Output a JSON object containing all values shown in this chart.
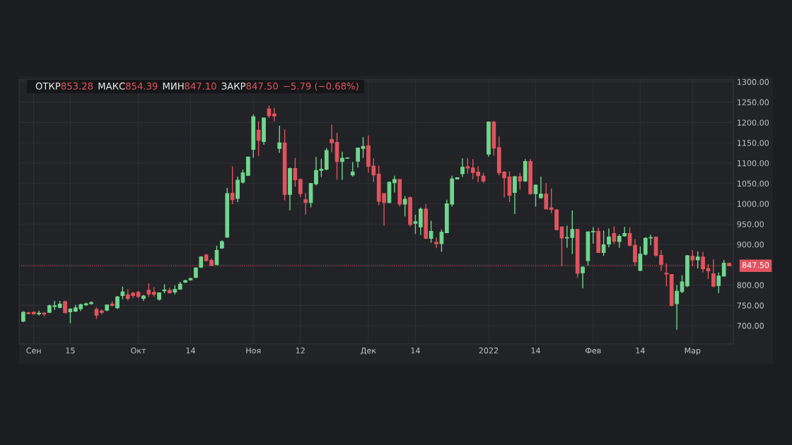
{
  "chart_data": {
    "type": "candlestick",
    "categories": [
      null,
      null,
      "Сен",
      null,
      null,
      null,
      null,
      null,
      null,
      "15",
      null,
      null,
      null,
      null,
      null,
      null,
      null,
      null,
      null,
      null,
      null,
      null,
      "Окт",
      null,
      null,
      null,
      null,
      null,
      null,
      null,
      null,
      null,
      "14",
      null,
      null,
      null,
      null,
      null,
      null,
      null,
      null,
      null,
      null,
      null,
      "Ноя",
      null,
      null,
      null,
      null,
      null,
      null,
      null,
      null,
      "12",
      null,
      null,
      null,
      null,
      null,
      null,
      null,
      null,
      null,
      null,
      null,
      null,
      "Дек",
      null,
      null,
      null,
      null,
      null,
      null,
      null,
      null,
      "14",
      null,
      null,
      null,
      null,
      null,
      null,
      null,
      null,
      null,
      null,
      null,
      null,
      null,
      "2022",
      null,
      null,
      null,
      null,
      null,
      null,
      null,
      null,
      "14",
      null,
      null,
      null,
      null,
      null,
      null,
      null,
      null,
      null,
      null,
      "Фев",
      null,
      null,
      null,
      null,
      null,
      null,
      null,
      null,
      "14",
      null,
      null,
      null,
      null,
      null,
      null,
      null,
      null,
      null,
      "Мар",
      null,
      null,
      null,
      null,
      null,
      null,
      null
    ],
    "ohlc": [
      [
        711,
        736,
        709,
        733
      ],
      [
        732,
        734,
        728,
        730
      ],
      [
        733,
        735,
        727,
        729
      ],
      [
        729,
        737,
        725,
        731
      ],
      [
        731,
        733,
        723,
        729
      ],
      [
        733,
        752,
        731,
        749
      ],
      [
        747,
        761,
        739,
        749
      ],
      [
        745,
        761,
        743,
        753
      ],
      [
        759,
        762,
        730,
        732
      ],
      [
        734,
        743,
        706,
        741
      ],
      [
        736,
        751,
        733,
        744
      ],
      [
        742,
        754,
        736,
        752
      ],
      [
        751,
        757,
        749,
        754
      ],
      [
        754,
        760,
        752,
        757
      ],
      [
        740,
        745,
        717,
        726
      ],
      [
        736,
        740,
        728,
        733
      ],
      [
        738,
        752,
        736,
        751
      ],
      [
        753,
        760,
        748,
        750
      ],
      [
        744,
        773,
        741,
        771
      ],
      [
        774,
        796,
        765,
        783
      ],
      [
        776,
        790,
        762,
        767
      ],
      [
        780,
        783,
        768,
        774
      ],
      [
        782,
        786,
        768,
        772
      ],
      [
        767,
        776,
        761,
        773
      ],
      [
        787,
        804,
        771,
        778
      ],
      [
        782,
        795,
        771,
        777
      ],
      [
        765,
        782,
        762,
        781
      ],
      [
        786,
        802,
        780,
        788
      ],
      [
        787,
        794,
        779,
        781
      ],
      [
        783,
        799,
        777,
        789
      ],
      [
        790,
        808,
        789,
        802
      ],
      [
        807,
        813,
        805,
        811
      ],
      [
        813,
        818,
        811,
        816
      ],
      [
        819,
        843,
        817,
        842
      ],
      [
        844,
        871,
        842,
        869
      ],
      [
        874,
        877,
        858,
        860
      ],
      [
        861,
        866,
        847,
        848
      ],
      [
        850,
        897,
        849,
        885
      ],
      [
        891,
        910,
        889,
        907
      ],
      [
        918,
        1039,
        916,
        1025
      ],
      [
        1026,
        1092,
        999,
        1010
      ],
      [
        1013,
        1067,
        1004,
        1058
      ],
      [
        1053,
        1084,
        1050,
        1076
      ],
      [
        1070,
        1116,
        1068,
        1115
      ],
      [
        1134,
        1220,
        1113,
        1214
      ],
      [
        1181,
        1203,
        1118,
        1156
      ],
      [
        1153,
        1212,
        1145,
        1211
      ],
      [
        1233,
        1242,
        1211,
        1217
      ],
      [
        1221,
        1236,
        1203,
        1216
      ],
      [
        1136,
        1192,
        1125,
        1150
      ],
      [
        1150,
        1183,
        1008,
        1023
      ],
      [
        1023,
        1089,
        984,
        1087
      ],
      [
        1087,
        1113,
        1042,
        1059
      ],
      [
        1060,
        1062,
        1016,
        1025
      ],
      [
        1010,
        1027,
        973,
        1003
      ],
      [
        1003,
        1051,
        991,
        1050
      ],
      [
        1049,
        1115,
        1045,
        1082
      ],
      [
        1082,
        1111,
        1066,
        1085
      ],
      [
        1085,
        1137,
        1083,
        1131
      ],
      [
        1158,
        1195,
        1127,
        1150
      ],
      [
        1151,
        1175,
        1059,
        1104
      ],
      [
        1104,
        1128,
        1059,
        1112
      ],
      [
        1112,
        1114,
        1111,
        1113
      ],
      [
        1071,
        1103,
        1067,
        1078
      ],
      [
        1105,
        1138,
        1089,
        1137
      ],
      [
        1136,
        1164,
        1113,
        1141
      ],
      [
        1143,
        1168,
        1077,
        1092
      ],
      [
        1093,
        1112,
        1054,
        1071
      ],
      [
        1073,
        1094,
        996,
        1006
      ],
      [
        1025,
        1026,
        946,
        1003
      ],
      [
        1003,
        1055,
        1001,
        1053
      ],
      [
        1052,
        1069,
        1028,
        1060
      ],
      [
        1060,
        1061,
        993,
        999
      ],
      [
        999,
        1019,
        969,
        1011
      ],
      [
        1015,
        1018,
        944,
        949
      ],
      [
        952,
        973,
        926,
        956
      ],
      [
        943,
        991,
        923,
        987
      ],
      [
        987,
        999,
        913,
        915
      ],
      [
        915,
        958,
        904,
        932
      ],
      [
        905,
        917,
        891,
        902
      ],
      [
        902,
        937,
        882,
        930
      ],
      [
        929,
        1010,
        928,
        1000
      ],
      [
        999,
        1069,
        993,
        1061
      ],
      [
        1061,
        1065,
        1060,
        1064
      ],
      [
        1074,
        1112,
        1066,
        1090
      ],
      [
        1091,
        1112,
        1074,
        1088
      ],
      [
        1088,
        1110,
        1060,
        1077
      ],
      [
        1078,
        1092,
        1053,
        1069
      ],
      [
        1068,
        1076,
        1051,
        1056
      ],
      [
        1122,
        1202,
        1116,
        1201
      ],
      [
        1201,
        1204,
        1118,
        1137
      ],
      [
        1138,
        1166,
        1070,
        1076
      ],
      [
        1078,
        1080,
        1016,
        1064
      ],
      [
        1066,
        1080,
        1004,
        1021
      ],
      [
        1028,
        1068,
        975,
        1067
      ],
      [
        1067,
        1076,
        1035,
        1056
      ],
      [
        1056,
        1110,
        1054,
        1104
      ],
      [
        1104,
        1110,
        1022,
        1025
      ],
      [
        1025,
        1047,
        993,
        1046
      ],
      [
        1015,
        1067,
        1012,
        1024
      ],
      [
        1024,
        1051,
        987,
        987
      ],
      [
        990,
        1038,
        977,
        986
      ],
      [
        985,
        987,
        935,
        936
      ],
      [
        943,
        944,
        847,
        916
      ],
      [
        916,
        946,
        892,
        917
      ],
      [
        917,
        984,
        876,
        937
      ],
      [
        937,
        938,
        818,
        829
      ],
      [
        830,
        846,
        792,
        844
      ],
      [
        860,
        932,
        848,
        931
      ],
      [
        931,
        942,
        902,
        932
      ],
      [
        932,
        941,
        879,
        880
      ],
      [
        880,
        934,
        872,
        899
      ],
      [
        901,
        939,
        893,
        918
      ],
      [
        927,
        944,
        901,
        908
      ],
      [
        907,
        925,
        892,
        920
      ],
      [
        921,
        943,
        919,
        927
      ],
      [
        927,
        942,
        895,
        898
      ],
      [
        898,
        913,
        847,
        857
      ],
      [
        836,
        895,
        835,
        876
      ],
      [
        876,
        918,
        873,
        915
      ],
      [
        916,
        924,
        898,
        917
      ],
      [
        918,
        919,
        870,
        873
      ],
      [
        873,
        886,
        835,
        851
      ],
      [
        829,
        853,
        797,
        827
      ],
      [
        826,
        827,
        747,
        750
      ],
      [
        754,
        800,
        690,
        785
      ],
      [
        784,
        824,
        780,
        808
      ],
      [
        798,
        874,
        795,
        872
      ],
      [
        871,
        886,
        847,
        862
      ],
      [
        862,
        883,
        841,
        869
      ],
      [
        869,
        882,
        831,
        840
      ],
      [
        841,
        851,
        815,
        835
      ],
      [
        828,
        863,
        795,
        797
      ],
      [
        799,
        831,
        780,
        822
      ],
      [
        822,
        862,
        822,
        854
      ],
      [
        853.28,
        854.39,
        847.1,
        847.5
      ]
    ],
    "colors": [
      "#6fd68e",
      "#e0545f",
      "#e0545f",
      "#6fd68e",
      "#e0545f",
      "#6fd68e",
      "#6fd68e",
      "#6fd68e",
      "#e0545f",
      "#6fd68e",
      "#6fd68e",
      "#6fd68e",
      "#6fd68e",
      "#6fd68e",
      "#e0545f",
      "#e0545f",
      "#6fd68e",
      "#e0545f",
      "#6fd68e",
      "#6fd68e",
      "#e0545f",
      "#e0545f",
      "#e0545f",
      "#6fd68e",
      "#e0545f",
      "#e0545f",
      "#6fd68e",
      "#6fd68e",
      "#e0545f",
      "#6fd68e",
      "#6fd68e",
      "#6fd68e",
      "#6fd68e",
      "#6fd68e",
      "#6fd68e",
      "#e0545f",
      "#e0545f",
      "#6fd68e",
      "#6fd68e",
      "#6fd68e",
      "#e0545f",
      "#6fd68e",
      "#6fd68e",
      "#6fd68e",
      "#6fd68e",
      "#e0545f",
      "#6fd68e",
      "#e0545f",
      "#e0545f",
      "#6fd68e",
      "#e0545f",
      "#6fd68e",
      "#e0545f",
      "#e0545f",
      "#e0545f",
      "#6fd68e",
      "#6fd68e",
      "#6fd68e",
      "#6fd68e",
      "#e0545f",
      "#e0545f",
      "#6fd68e",
      "#6fd68e",
      "#6fd68e",
      "#6fd68e",
      "#6fd68e",
      "#e0545f",
      "#e0545f",
      "#e0545f",
      "#e0545f",
      "#6fd68e",
      "#6fd68e",
      "#e0545f",
      "#6fd68e",
      "#e0545f",
      "#6fd68e",
      "#6fd68e",
      "#e0545f",
      "#6fd68e",
      "#e0545f",
      "#6fd68e",
      "#6fd68e",
      "#6fd68e",
      "#6fd68e",
      "#6fd68e",
      "#e0545f",
      "#e0545f",
      "#e0545f",
      "#e0545f",
      "#6fd68e",
      "#e0545f",
      "#e0545f",
      "#e0545f",
      "#e0545f",
      "#6fd68e",
      "#e0545f",
      "#6fd68e",
      "#e0545f",
      "#6fd68e",
      "#6fd68e",
      "#e0545f",
      "#e0545f",
      "#e0545f",
      "#e0545f",
      "#6fd68e",
      "#6fd68e",
      "#e0545f",
      "#6fd68e",
      "#6fd68e",
      "#6fd68e",
      "#e0545f",
      "#6fd68e",
      "#6fd68e",
      "#e0545f",
      "#6fd68e",
      "#6fd68e",
      "#e0545f",
      "#e0545f",
      "#6fd68e",
      "#6fd68e",
      "#6fd68e",
      "#e0545f",
      "#e0545f",
      "#e0545f",
      "#e0545f",
      "#6fd68e",
      "#6fd68e",
      "#6fd68e",
      "#e0545f",
      "#6fd68e",
      "#e0545f",
      "#e0545f",
      "#e0545f",
      "#6fd68e",
      "#6fd68e",
      "#e0545f"
    ],
    "ylim": [
      655,
      1305
    ],
    "yticks": [
      {
        "value": 700,
        "label": "700.00"
      },
      {
        "value": 750,
        "label": "750.00"
      },
      {
        "value": 800,
        "label": "800.00"
      },
      {
        "value": 850,
        "label": null
      },
      {
        "value": 900,
        "label": "900.00"
      },
      {
        "value": 950,
        "label": "950.00"
      },
      {
        "value": 1000,
        "label": "1000.00"
      },
      {
        "value": 1050,
        "label": "1050.00"
      },
      {
        "value": 1100,
        "label": "1100.00"
      },
      {
        "value": 1150,
        "label": "1150.00"
      },
      {
        "value": 1200,
        "label": "1200.00"
      },
      {
        "value": 1250,
        "label": "1250.00"
      },
      {
        "value": 1300,
        "label": "1300.00"
      }
    ],
    "grid": true,
    "ref_lines": [
      {
        "axis": "y",
        "value": 847.5,
        "label": "847.50",
        "color": "#e0545f",
        "line_style": "dotted"
      }
    ],
    "annotations": [
      "ОТКР",
      "853.28",
      "МАКС",
      "854.39",
      "МИН",
      "847.10",
      "ЗАКР",
      "847.50",
      "−5.79 (−0.68%)"
    ]
  }
}
